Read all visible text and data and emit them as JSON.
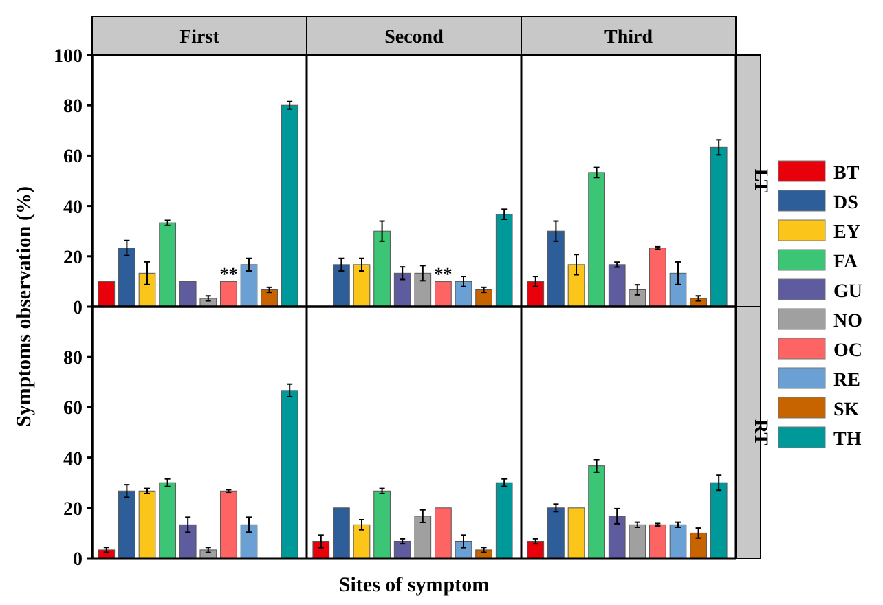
{
  "chart_data": [
    {
      "type": "bar",
      "categories": [
        "First",
        "Second",
        "Third"
      ],
      "ylabel": "Symptoms observation (%)",
      "y2label": "LT",
      "legend": "right",
      "ylim": [
        0,
        100
      ],
      "yticks": [
        0,
        20,
        40,
        60,
        80,
        100
      ],
      "series": [
        {
          "name": "BT",
          "color": "#e8000b",
          "values": [
            10,
            null,
            10
          ],
          "errors": [
            null,
            null,
            2
          ]
        },
        {
          "name": "DS",
          "color": "#2e5e99",
          "values": [
            23.3,
            16.7,
            30
          ],
          "errors": [
            3,
            2.5,
            4
          ]
        },
        {
          "name": "EY",
          "color": "#fbc51a",
          "values": [
            13.3,
            16.7,
            16.7
          ],
          "errors": [
            4.5,
            2.5,
            4
          ]
        },
        {
          "name": "FA",
          "color": "#3cc574",
          "values": [
            33.3,
            30,
            53.3
          ],
          "errors": [
            1,
            4,
            2
          ]
        },
        {
          "name": "GU",
          "color": "#5e5b9e",
          "values": [
            10,
            13.3,
            16.7
          ],
          "errors": [
            null,
            2.5,
            1
          ]
        },
        {
          "name": "NO",
          "color": "#a0a0a0",
          "values": [
            3.3,
            13.3,
            6.7
          ],
          "errors": [
            1,
            3,
            2
          ]
        },
        {
          "name": "OC",
          "color": "#ff6464",
          "values": [
            10,
            10,
            23.3
          ],
          "errors": [
            null,
            null,
            0.5
          ],
          "value_labels": [
            "**",
            "**",
            null
          ]
        },
        {
          "name": "RE",
          "color": "#6aa0d4",
          "values": [
            16.7,
            10,
            13.3
          ],
          "errors": [
            2.5,
            2,
            4.5
          ]
        },
        {
          "name": "SK",
          "color": "#c86400",
          "values": [
            6.7,
            6.7,
            3.3
          ],
          "errors": [
            1,
            1,
            1
          ]
        },
        {
          "name": "TH",
          "color": "#00999a",
          "values": [
            80,
            36.7,
            63.3
          ],
          "errors": [
            1.5,
            2,
            3
          ]
        }
      ]
    },
    {
      "type": "bar",
      "categories": [
        null,
        null,
        null
      ],
      "xlabel": "Sites of symptom",
      "y2label": "RT",
      "ylim": [
        0,
        100
      ],
      "yticks": [
        0,
        20,
        40,
        60,
        80
      ],
      "series": [
        {
          "color": "#e8000b",
          "values": [
            3.3,
            6.7,
            6.7
          ],
          "errors": [
            1,
            2.5,
            1
          ]
        },
        {
          "color": "#2e5e99",
          "values": [
            26.7,
            20,
            20
          ],
          "errors": [
            2.5,
            null,
            1.5
          ]
        },
        {
          "color": "#fbc51a",
          "values": [
            26.7,
            13.3,
            20
          ],
          "errors": [
            1,
            2,
            null
          ]
        },
        {
          "color": "#3cc574",
          "values": [
            30,
            26.7,
            36.7
          ],
          "errors": [
            1.5,
            1,
            2.5
          ]
        },
        {
          "color": "#5e5b9e",
          "values": [
            13.3,
            6.7,
            16.7
          ],
          "errors": [
            3,
            1,
            3
          ]
        },
        {
          "color": "#a0a0a0",
          "values": [
            3.3,
            16.7,
            13.3
          ],
          "errors": [
            1,
            2.5,
            1
          ]
        },
        {
          "color": "#ff6464",
          "values": [
            26.7,
            20,
            13.3
          ],
          "errors": [
            0.5,
            null,
            0.5
          ]
        },
        {
          "color": "#6aa0d4",
          "values": [
            13.3,
            6.7,
            13.3
          ],
          "errors": [
            3,
            2.5,
            1
          ]
        },
        {
          "color": "#c86400",
          "values": [
            null,
            3.3,
            10
          ],
          "errors": [
            null,
            1,
            2
          ]
        },
        {
          "color": "#00999a",
          "values": [
            66.7,
            30,
            30
          ],
          "errors": [
            2.5,
            1.5,
            3
          ]
        }
      ]
    }
  ]
}
